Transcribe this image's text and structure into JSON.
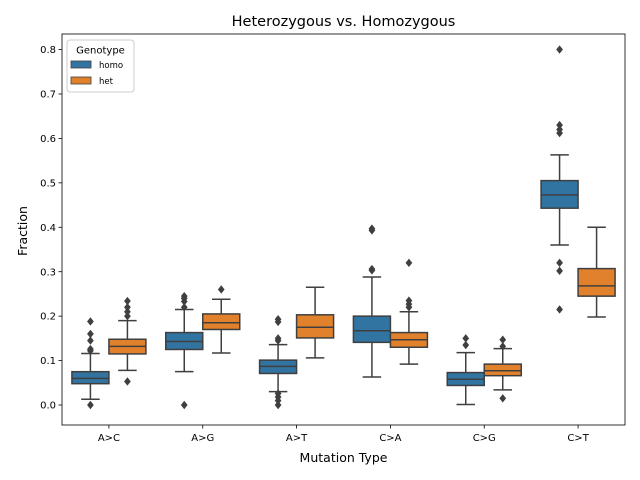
{
  "chart_data": {
    "type": "box",
    "title": "Heterozygous vs. Homozygous",
    "xlabel": "Mutation Type",
    "ylabel": "Fraction",
    "ylim": [
      -0.045,
      0.835
    ],
    "yticks": [
      0.0,
      0.1,
      0.2,
      0.3,
      0.4,
      0.5,
      0.6,
      0.7,
      0.8
    ],
    "ytick_labels": [
      "0.0",
      "0.1",
      "0.2",
      "0.3",
      "0.4",
      "0.5",
      "0.6",
      "0.7",
      "0.8"
    ],
    "categories": [
      "A>C",
      "A>G",
      "A>T",
      "C>A",
      "C>G",
      "C>T"
    ],
    "legend": {
      "title": "Genotype",
      "placement": "top-left"
    },
    "series": [
      {
        "name": "homo",
        "color": "#3274a1",
        "boxes": [
          {
            "q1": 0.048,
            "median": 0.06,
            "q3": 0.075,
            "whisker_low": 0.013,
            "whisker_high": 0.116,
            "outliers": [
              0.0,
              0.122,
              0.126,
              0.145,
              0.16,
              0.188
            ]
          },
          {
            "q1": 0.125,
            "median": 0.143,
            "q3": 0.163,
            "whisker_low": 0.075,
            "whisker_high": 0.215,
            "outliers": [
              0.0,
              0.22,
              0.233,
              0.24,
              0.245
            ]
          },
          {
            "q1": 0.071,
            "median": 0.087,
            "q3": 0.101,
            "whisker_low": 0.03,
            "whisker_high": 0.136,
            "outliers": [
              0.0,
              0.01,
              0.018,
              0.026,
              0.145,
              0.15,
              0.187,
              0.193
            ]
          },
          {
            "q1": 0.141,
            "median": 0.167,
            "q3": 0.2,
            "whisker_low": 0.063,
            "whisker_high": 0.288,
            "outliers": [
              0.303,
              0.306,
              0.393,
              0.397
            ]
          },
          {
            "q1": 0.044,
            "median": 0.058,
            "q3": 0.073,
            "whisker_low": 0.001,
            "whisker_high": 0.118,
            "outliers": [
              0.135,
              0.15
            ]
          },
          {
            "q1": 0.443,
            "median": 0.473,
            "q3": 0.505,
            "whisker_low": 0.36,
            "whisker_high": 0.563,
            "outliers": [
              0.215,
              0.302,
              0.32,
              0.612,
              0.62,
              0.63,
              0.8
            ]
          }
        ]
      },
      {
        "name": "het",
        "color": "#e1812c",
        "boxes": [
          {
            "q1": 0.115,
            "median": 0.132,
            "q3": 0.148,
            "whisker_low": 0.078,
            "whisker_high": 0.19,
            "outliers": [
              0.053,
              0.2,
              0.21,
              0.22,
              0.234
            ]
          },
          {
            "q1": 0.17,
            "median": 0.185,
            "q3": 0.205,
            "whisker_low": 0.117,
            "whisker_high": 0.238,
            "outliers": [
              0.26
            ]
          },
          {
            "q1": 0.151,
            "median": 0.175,
            "q3": 0.203,
            "whisker_low": 0.106,
            "whisker_high": 0.265,
            "outliers": []
          },
          {
            "q1": 0.13,
            "median": 0.147,
            "q3": 0.163,
            "whisker_low": 0.092,
            "whisker_high": 0.21,
            "outliers": [
              0.22,
              0.227,
              0.235,
              0.32
            ]
          },
          {
            "q1": 0.066,
            "median": 0.077,
            "q3": 0.092,
            "whisker_low": 0.034,
            "whisker_high": 0.127,
            "outliers": [
              0.015,
              0.132,
              0.147
            ]
          },
          {
            "q1": 0.245,
            "median": 0.268,
            "q3": 0.307,
            "whisker_low": 0.198,
            "whisker_high": 0.4,
            "outliers": []
          }
        ]
      }
    ]
  }
}
